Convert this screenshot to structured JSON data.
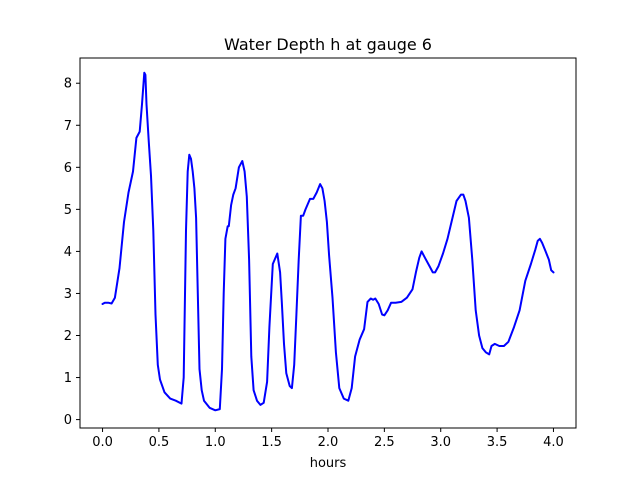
{
  "chart_data": {
    "type": "line",
    "title": "Water Depth h at gauge 6",
    "xlabel": "hours",
    "ylabel": "",
    "xlim": [
      -0.2,
      4.2
    ],
    "ylim": [
      -0.2,
      8.6
    ],
    "xticks": [
      0.0,
      0.5,
      1.0,
      1.5,
      2.0,
      2.5,
      3.0,
      3.5,
      4.0
    ],
    "xtick_labels": [
      "0.0",
      "0.5",
      "1.0",
      "1.5",
      "2.0",
      "2.5",
      "3.0",
      "3.5",
      "4.0"
    ],
    "yticks": [
      0,
      1,
      2,
      3,
      4,
      5,
      6,
      7,
      8
    ],
    "ytick_labels": [
      "0",
      "1",
      "2",
      "3",
      "4",
      "5",
      "6",
      "7",
      "8"
    ],
    "grid": false,
    "line_color": "#0000ff",
    "series": [
      {
        "x": [
          0.0,
          0.02,
          0.05,
          0.08,
          0.11,
          0.15,
          0.19,
          0.23,
          0.27,
          0.3,
          0.33,
          0.35,
          0.37,
          0.38,
          0.39,
          0.41,
          0.43,
          0.45,
          0.47,
          0.49,
          0.51,
          0.55,
          0.6,
          0.65,
          0.7,
          0.72,
          0.74,
          0.755,
          0.77,
          0.785,
          0.8,
          0.815,
          0.83,
          0.845,
          0.86,
          0.88,
          0.9,
          0.95,
          1.0,
          1.04,
          1.06,
          1.075,
          1.09,
          1.11,
          1.12,
          1.14,
          1.16,
          1.18,
          1.21,
          1.24,
          1.26,
          1.28,
          1.3,
          1.32,
          1.34,
          1.37,
          1.4,
          1.43,
          1.46,
          1.48,
          1.51,
          1.55,
          1.575,
          1.59,
          1.61,
          1.63,
          1.66,
          1.68,
          1.7,
          1.72,
          1.74,
          1.76,
          1.78,
          1.8,
          1.84,
          1.87,
          1.9,
          1.93,
          1.95,
          1.97,
          1.99,
          2.01,
          2.04,
          2.07,
          2.1,
          2.14,
          2.18,
          2.21,
          2.24,
          2.28,
          2.32,
          2.35,
          2.38,
          2.4,
          2.42,
          2.45,
          2.48,
          2.5,
          2.53,
          2.56,
          2.6,
          2.65,
          2.7,
          2.75,
          2.78,
          2.81,
          2.83,
          2.86,
          2.9,
          2.93,
          2.95,
          2.98,
          3.02,
          3.06,
          3.1,
          3.14,
          3.18,
          3.2,
          3.22,
          3.25,
          3.28,
          3.31,
          3.34,
          3.37,
          3.4,
          3.43,
          3.45,
          3.48,
          3.52,
          3.56,
          3.6,
          3.65,
          3.7,
          3.75,
          3.8,
          3.84,
          3.86,
          3.88,
          3.9,
          3.93,
          3.96,
          3.98,
          4.0
        ],
        "y": [
          2.75,
          2.78,
          2.78,
          2.76,
          2.9,
          3.6,
          4.7,
          5.4,
          5.9,
          6.7,
          6.85,
          7.5,
          8.25,
          8.2,
          7.5,
          6.6,
          5.8,
          4.5,
          2.5,
          1.3,
          0.95,
          0.65,
          0.5,
          0.45,
          0.38,
          1.0,
          4.5,
          5.9,
          6.3,
          6.2,
          5.9,
          5.5,
          4.8,
          3.0,
          1.2,
          0.7,
          0.45,
          0.28,
          0.22,
          0.25,
          1.2,
          3.0,
          4.3,
          4.6,
          4.6,
          5.1,
          5.35,
          5.5,
          6.0,
          6.15,
          5.9,
          5.3,
          3.8,
          1.5,
          0.7,
          0.45,
          0.35,
          0.4,
          0.9,
          2.2,
          3.7,
          3.95,
          3.5,
          2.8,
          1.8,
          1.1,
          0.8,
          0.75,
          1.3,
          2.5,
          3.8,
          4.85,
          4.85,
          5.0,
          5.25,
          5.25,
          5.4,
          5.6,
          5.5,
          5.2,
          4.7,
          3.9,
          2.9,
          1.6,
          0.75,
          0.5,
          0.45,
          0.75,
          1.5,
          1.9,
          2.15,
          2.8,
          2.88,
          2.85,
          2.88,
          2.75,
          2.5,
          2.48,
          2.6,
          2.78,
          2.78,
          2.8,
          2.9,
          3.1,
          3.5,
          3.85,
          4.0,
          3.85,
          3.65,
          3.5,
          3.5,
          3.65,
          3.95,
          4.3,
          4.75,
          5.2,
          5.35,
          5.35,
          5.2,
          4.8,
          3.8,
          2.6,
          2.0,
          1.7,
          1.6,
          1.55,
          1.75,
          1.8,
          1.75,
          1.75,
          1.85,
          2.2,
          2.6,
          3.3,
          3.7,
          4.05,
          4.25,
          4.3,
          4.2,
          4.0,
          3.8,
          3.55,
          3.5
        ]
      }
    ]
  }
}
